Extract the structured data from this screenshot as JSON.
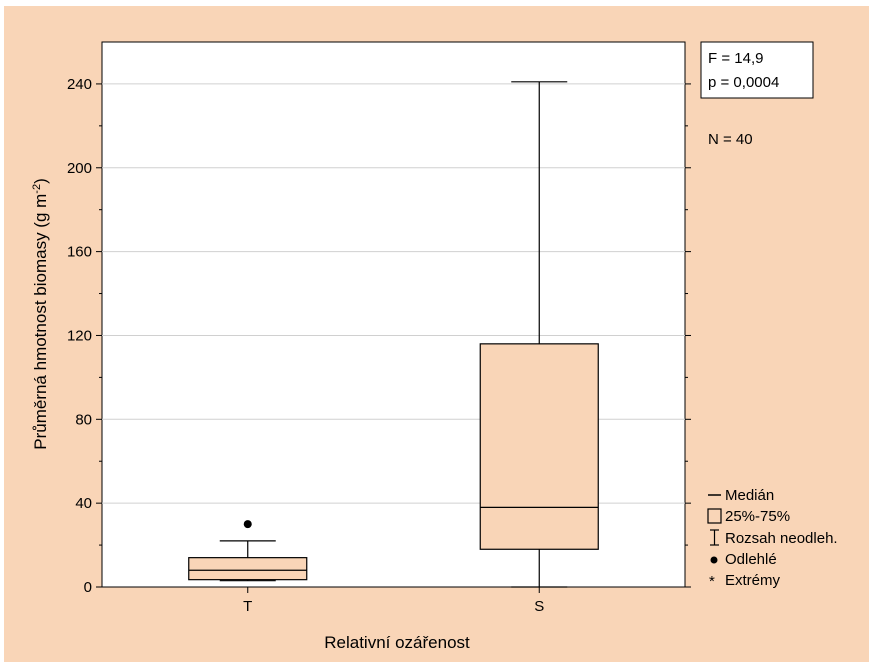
{
  "chart_data": {
    "type": "box",
    "xlabel": "Relativní ozářenost",
    "ylabel": "Průměrná hmotnost biomasy (g m",
    "ylabel_sup": "-2",
    "ylabel_close": ")",
    "ylim": [
      0,
      260
    ],
    "yticks": [
      0,
      40,
      80,
      120,
      160,
      200,
      240
    ],
    "grid": true,
    "categories": [
      "T",
      "S"
    ],
    "boxes": [
      {
        "name": "T",
        "min": 3,
        "q1": 3.5,
        "median": 8,
        "q3": 14,
        "max": 22,
        "outliers": [
          30
        ]
      },
      {
        "name": "S",
        "min": 0,
        "q1": 18,
        "median": 38,
        "q3": 116,
        "max": 241,
        "outliers": []
      }
    ],
    "box_color": "#f9d5b7",
    "stats": {
      "f": "F = 14,9",
      "p": "p = 0,0004",
      "n": "N = 40"
    },
    "legend": {
      "position": "bottom-right",
      "items": [
        "Medián",
        "25%-75%",
        "Rozsah neodleh.",
        "Odlehlé",
        "Extrémy"
      ]
    }
  }
}
